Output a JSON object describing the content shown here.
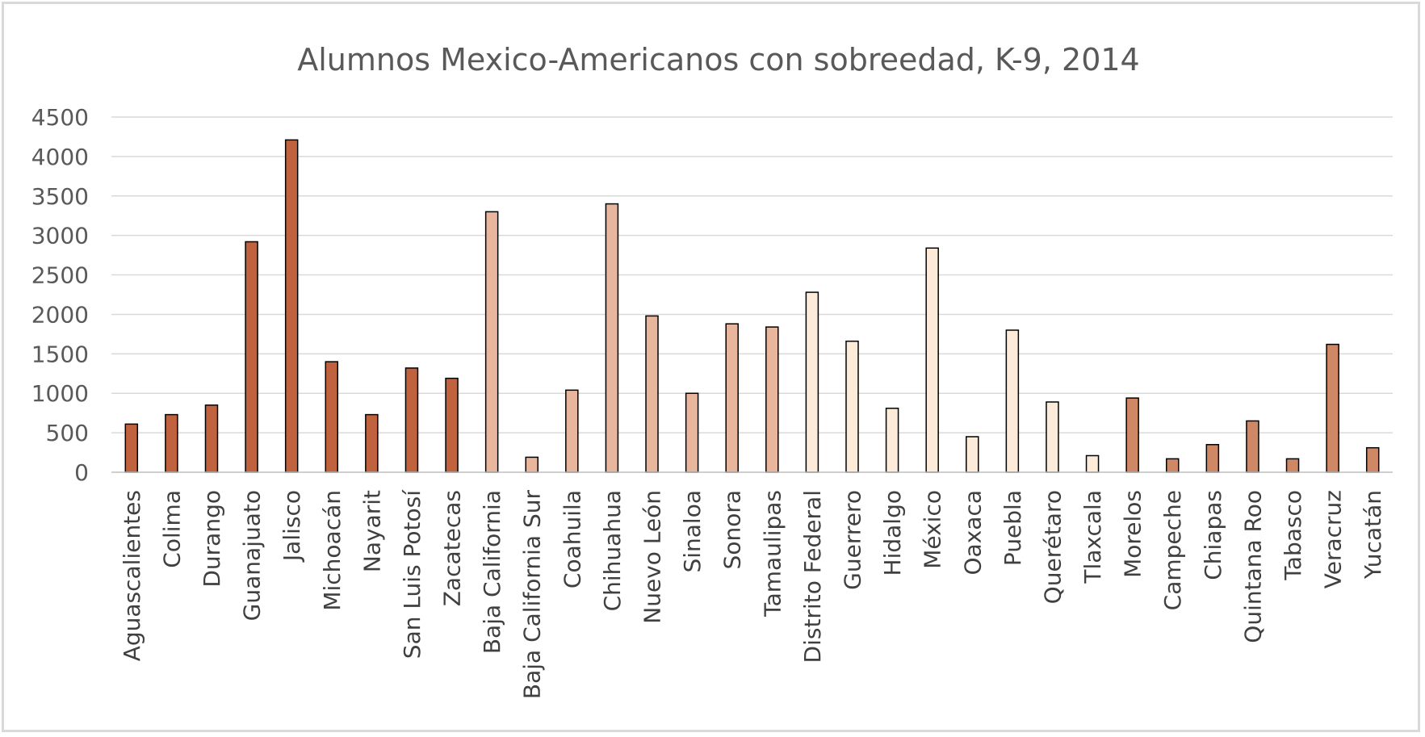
{
  "chart_data": {
    "type": "bar",
    "title": "Alumnos Mexico-Americanos con sobreedad, K-9, 2014",
    "xlabel": "",
    "ylabel": "",
    "ylim": [
      0,
      4500
    ],
    "yticks": [
      0,
      500,
      1000,
      1500,
      2000,
      2500,
      3000,
      3500,
      4000,
      4500
    ],
    "grid": true,
    "legend": "none",
    "categories": [
      "Aguascalientes",
      "Colima",
      "Durango",
      "Guanajuato",
      "Jalisco",
      "Michoacán",
      "Nayarit",
      "San Luis Potosí",
      "Zacatecas",
      "Baja California",
      "Baja California Sur",
      "Coahuila",
      "Chihuahua",
      "Nuevo León",
      "Sinaloa",
      "Sonora",
      "Tamaulipas",
      "Distrito Federal",
      "Guerrero",
      "Hidalgo",
      "México",
      "Oaxaca",
      "Puebla",
      "Querétaro",
      "Tlaxcala",
      "Morelos",
      "Campeche",
      "Chiapas",
      "Quintana Roo",
      "Tabasco",
      "Veracruz",
      "Yucatán"
    ],
    "values": [
      610,
      730,
      850,
      2920,
      4210,
      1400,
      730,
      1320,
      1190,
      3300,
      190,
      1040,
      3400,
      1980,
      1000,
      1880,
      1840,
      2280,
      1660,
      810,
      2840,
      450,
      1800,
      890,
      210,
      940,
      170,
      350,
      650,
      170,
      1620,
      310
    ],
    "bar_colors": [
      "#c0623d",
      "#c0623d",
      "#c0623d",
      "#c0623d",
      "#c0623d",
      "#c0623d",
      "#c0623d",
      "#c0623d",
      "#c0623d",
      "#e8b69c",
      "#e8b69c",
      "#e8b69c",
      "#e8b69c",
      "#e8b69c",
      "#e8b69c",
      "#e8b69c",
      "#e8b69c",
      "#fcebd8",
      "#fcebd8",
      "#fcebd8",
      "#fcebd8",
      "#fcebd8",
      "#fcebd8",
      "#fcebd8",
      "#fcebd8",
      "#cf8865",
      "#cf8865",
      "#cf8865",
      "#cf8865",
      "#cf8865",
      "#cf8865",
      "#cf8865"
    ]
  }
}
